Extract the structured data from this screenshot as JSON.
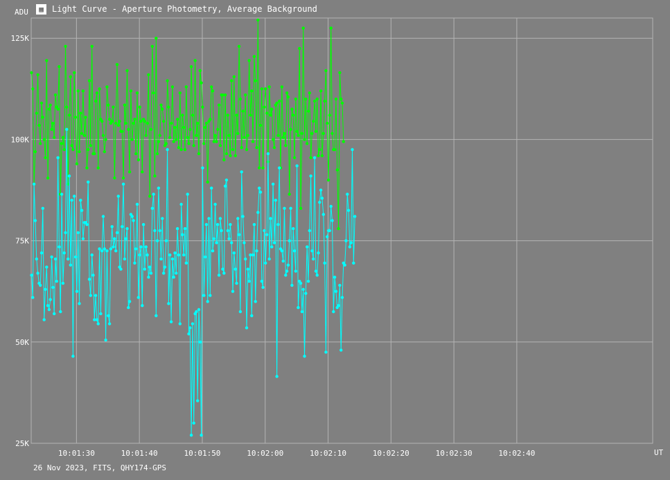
{
  "window": {
    "title": "Light Curve - Aperture Photometry, Average Background",
    "icon": "chart-app-icon"
  },
  "footer": "26 Nov 2023, FITS, QHY174-GPS",
  "colors": {
    "background": "#808080",
    "grid": "#b4b4b4",
    "text": "#ffffff",
    "series_green": "#00ff00",
    "series_cyan": "#00ffff"
  },
  "chart_data": {
    "type": "line",
    "title": "Light Curve - Aperture Photometry, Average Background",
    "xlabel": "UT",
    "ylabel": "ADU",
    "grid": true,
    "x_unit": "seconds from 10:01:22.8 UT",
    "xlim": [
      "10:01:22.8",
      "10:03:01.6"
    ],
    "ylim": [
      25000,
      130000
    ],
    "x_ticks": [
      "10:01:30",
      "10:01:40",
      "10:01:50",
      "10:02:00",
      "10:02:10",
      "10:02:20",
      "10:02:30",
      "10:02:40"
    ],
    "y_ticks": [
      "25K",
      "50K",
      "75K",
      "100K",
      "125K"
    ],
    "sample_interval_s": 0.2,
    "series": [
      {
        "color": "#00ff00",
        "values": [
          116500,
          112500,
          89000,
          97000,
          106500,
          116000,
          103500,
          99000,
          109000,
          105500,
          100000,
          95500,
          119500,
          90500,
          107500,
          108500,
          102500,
          104000,
          100500,
          111000,
          108000,
          107500,
          118000,
          86500,
          99000,
          100500,
          97500,
          123000,
          108000,
          89000,
          106000,
          115500,
          98500,
          97500,
          116500,
          105500,
          94000,
          112000,
          97000,
          106500,
          101500,
          112000,
          101000,
          105500,
          93000,
          97500,
          114500,
          98500,
          123000,
          96500,
          96500,
          109500,
          111500,
          93000,
          112500,
          105000,
          104500,
          101000,
          97000,
          100000,
          113000,
          108500,
          105000,
          104000,
          104500,
          108000,
          90500,
          104000,
          118500,
          103500,
          104500,
          102000,
          102000,
          90500,
          108500,
          104000,
          117000,
          102500,
          92000,
          112000,
          100000,
          104000,
          105000,
          96500,
          111500,
          95000,
          108000,
          104500,
          92000,
          105000,
          104500,
          101000,
          104000,
          116000,
          86000,
          102500,
          123000,
          111500,
          91000,
          125000,
          96500,
          99500,
          101000,
          108500,
          107500,
          104500,
          98500,
          99000,
          114500,
          108000,
          100500,
          104000,
          113000,
          99500,
          103000,
          100000,
          105000,
          98000,
          111500,
          97500,
          106000,
          103000,
          97500,
          113000,
          100500,
          99000,
          102500,
          118000,
          106000,
          98500,
          119500,
          101000,
          104000,
          96500,
          117000,
          114000,
          108000,
          99000,
          103000,
          104000,
          89500,
          104500,
          105000,
          113000,
          112000,
          99500,
          101000,
          99500,
          102500,
          108500,
          98500,
          111000,
          111000,
          95000,
          111000,
          96500,
          106000,
          101000,
          96000,
          114500,
          97500,
          115500,
          96000,
          106000,
          101500,
          123000,
          110000,
          98000,
          107000,
          100500,
          111000,
          97500,
          101000,
          119500,
          106000,
          112000,
          99500,
          120500,
          114500,
          98000,
          129500,
          93000,
          103500,
          112500,
          93000,
          108000,
          112500,
          106500,
          94500,
          113000,
          106000,
          107500,
          100000,
          98000,
          108500,
          109000,
          101000,
          109500,
          93000,
          113000,
          100500,
          101500,
          98500,
          111500,
          110500,
          86500,
          102500,
          107500,
          106000,
          95500,
          110000,
          102000,
          101000,
          122500,
          83000,
          101500,
          127500,
          100000,
          110000,
          99000,
          107000,
          111500,
          95500,
          101500,
          104500,
          109500,
          102000,
          110000,
          96000,
          97500,
          112000,
          96000,
          101500,
          109500,
          117000,
          104000,
          90000,
          106000,
          127500,
          101500,
          97500,
          97500,
          110000,
          92500,
          78000,
          116500,
          110000,
          109000,
          99500
        ]
      },
      {
        "color": "#00ffff",
        "values": [
          66500,
          61000,
          89000,
          80000,
          70500,
          67000,
          64500,
          64000,
          72000,
          83000,
          55500,
          63000,
          68500,
          59000,
          58000,
          60500,
          71000,
          63500,
          57000,
          70500,
          65000,
          95500,
          73500,
          57500,
          86500,
          64500,
          72000,
          77000,
          102500,
          70500,
          91000,
          69000,
          85000,
          46500,
          86000,
          71000,
          62500,
          77000,
          59500,
          85000,
          82500,
          75500,
          79500,
          79500,
          79000,
          89500,
          65500,
          61500,
          71500,
          66500,
          55500,
          61500,
          55500,
          54500,
          73000,
          57000,
          72500,
          81000,
          73000,
          50500,
          72500,
          56500,
          54500,
          73000,
          78500,
          73500,
          75500,
          72500,
          77000,
          86000,
          68500,
          68000,
          78500,
          89000,
          70500,
          75500,
          78000,
          58500,
          60000,
          81500,
          81000,
          80000,
          69500,
          73000,
          84000,
          61000,
          71500,
          73500,
          59000,
          79000,
          68000,
          73500,
          71500,
          66000,
          68500,
          67000,
          83000,
          86500,
          77500,
          56500,
          75000,
          88000,
          77500,
          70500,
          80500,
          67000,
          68500,
          75000,
          97500,
          59500,
          71500,
          55000,
          70500,
          66000,
          72000,
          67000,
          78000,
          71500,
          54500,
          84000,
          76500,
          71500,
          78000,
          69500,
          86500,
          52000,
          53500,
          27000,
          54500,
          30000,
          57000,
          57500,
          35500,
          58000,
          50000,
          27000,
          93000,
          61500,
          71000,
          79000,
          60000,
          80500,
          61500,
          88000,
          72500,
          75500,
          84000,
          74500,
          79000,
          66500,
          80500,
          77500,
          68000,
          67000,
          88500,
          90000,
          77500,
          75500,
          79000,
          74500,
          62500,
          72000,
          68000,
          64500,
          80500,
          76500,
          57500,
          92000,
          81000,
          74500,
          70500,
          53500,
          68000,
          65000,
          71500,
          56500,
          71500,
          79000,
          60000,
          72500,
          82000,
          88000,
          87000,
          65000,
          63500,
          77500,
          69500,
          76500,
          96500,
          70500,
          80500,
          73500,
          89000,
          74500,
          85000,
          41500,
          79000,
          93000,
          73000,
          72500,
          70000,
          83000,
          66500,
          67500,
          69000,
          75000,
          83000,
          64000,
          78000,
          72500,
          67500,
          93500,
          58500,
          65000,
          64500,
          57500,
          63000,
          46500,
          62000,
          73500,
          65000,
          77500,
          91000,
          72500,
          70500,
          95500,
          67500,
          66500,
          72000,
          84500,
          87500,
          85500,
          81500,
          69500,
          47500,
          76000,
          77500,
          77500,
          83500,
          80000,
          57500,
          66000,
          62500,
          58500,
          59000,
          64000,
          48000,
          61000,
          69500,
          69000,
          75000,
          86500,
          82500,
          73500,
          74500,
          97500,
          69500,
          81000
        ]
      }
    ]
  }
}
